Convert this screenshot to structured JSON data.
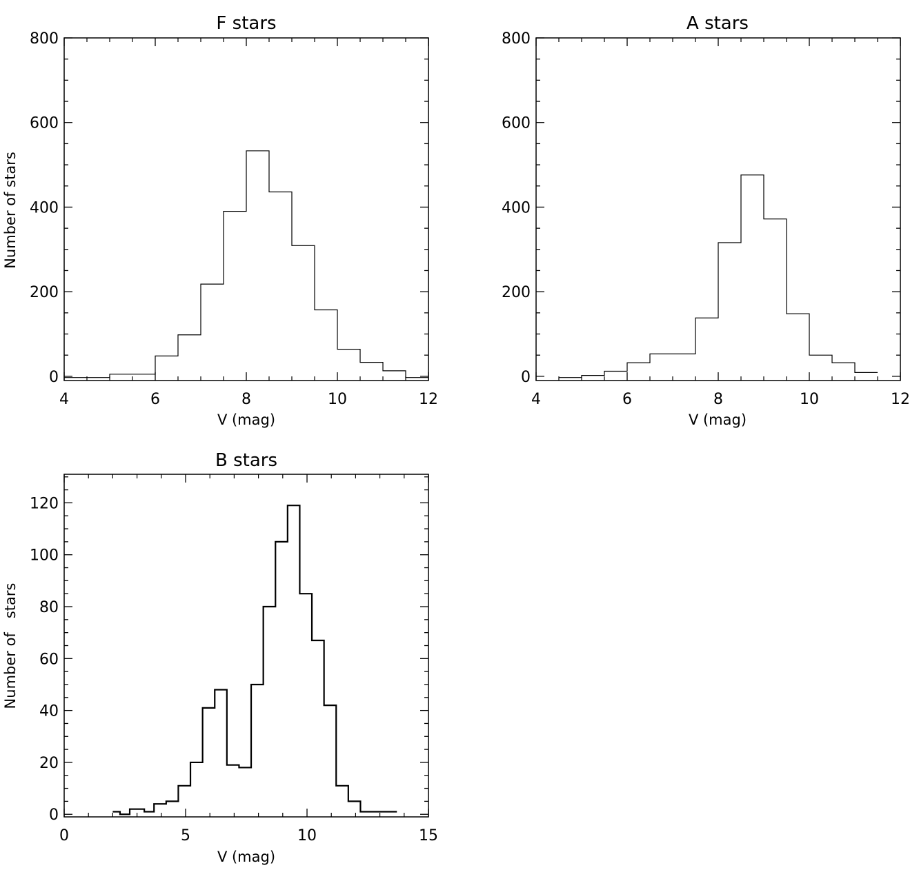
{
  "chart_data": [
    {
      "type": "histogram",
      "title": "F stars",
      "xlabel": "V (mag)",
      "ylabel": "Number of stars",
      "xlim": [
        4,
        12
      ],
      "ylim": [
        -10,
        800
      ],
      "xticks": [
        4,
        6,
        8,
        10,
        12
      ],
      "yticks": [
        0,
        200,
        400,
        600,
        800
      ],
      "grid": false,
      "bin_edges": [
        4.0,
        4.5,
        5.0,
        5.5,
        6.0,
        6.5,
        7.0,
        7.5,
        8.0,
        8.5,
        9.0,
        9.5,
        10.0,
        10.5,
        11.0,
        11.5,
        12.0
      ],
      "values": [
        -3,
        -3,
        5,
        5,
        48,
        98,
        218,
        390,
        533,
        436,
        309,
        157,
        64,
        33,
        13,
        -3
      ]
    },
    {
      "type": "histogram",
      "title": "A stars",
      "xlabel": "V (mag)",
      "ylabel": "",
      "xlim": [
        4,
        12
      ],
      "ylim": [
        -10,
        800
      ],
      "xticks": [
        4,
        6,
        8,
        10,
        12
      ],
      "yticks": [
        0,
        200,
        400,
        600,
        800
      ],
      "grid": false,
      "bin_edges": [
        4.5,
        5.0,
        5.5,
        6.0,
        6.5,
        7.0,
        7.5,
        8.0,
        8.5,
        9.0,
        9.5,
        10.0,
        10.5,
        11.0,
        11.5
      ],
      "values": [
        -3,
        2,
        12,
        32,
        53,
        53,
        138,
        316,
        476,
        372,
        148,
        50,
        32,
        9
      ]
    },
    {
      "type": "histogram",
      "title": "B stars",
      "xlabel": "V (mag)",
      "ylabel": "Number of   stars",
      "xlim": [
        0,
        15
      ],
      "ylim": [
        -1,
        131
      ],
      "xticks": [
        0,
        5,
        10,
        15
      ],
      "yticks": [
        0,
        20,
        40,
        60,
        80,
        100,
        120
      ],
      "grid": false,
      "bin_edges": [
        2.0,
        2.3,
        2.7,
        3.0,
        3.3,
        3.7,
        4.2,
        4.7,
        5.2,
        5.7,
        6.2,
        6.7,
        7.2,
        7.7,
        8.2,
        8.7,
        9.2,
        9.7,
        10.2,
        10.7,
        11.2,
        11.7,
        12.2,
        12.7,
        13.2,
        13.7
      ],
      "values": [
        1,
        0,
        2,
        2,
        1,
        4,
        5,
        11,
        20,
        41,
        48,
        19,
        18,
        50,
        80,
        105,
        119,
        85,
        67,
        42,
        11,
        5,
        1,
        1,
        1
      ]
    }
  ]
}
